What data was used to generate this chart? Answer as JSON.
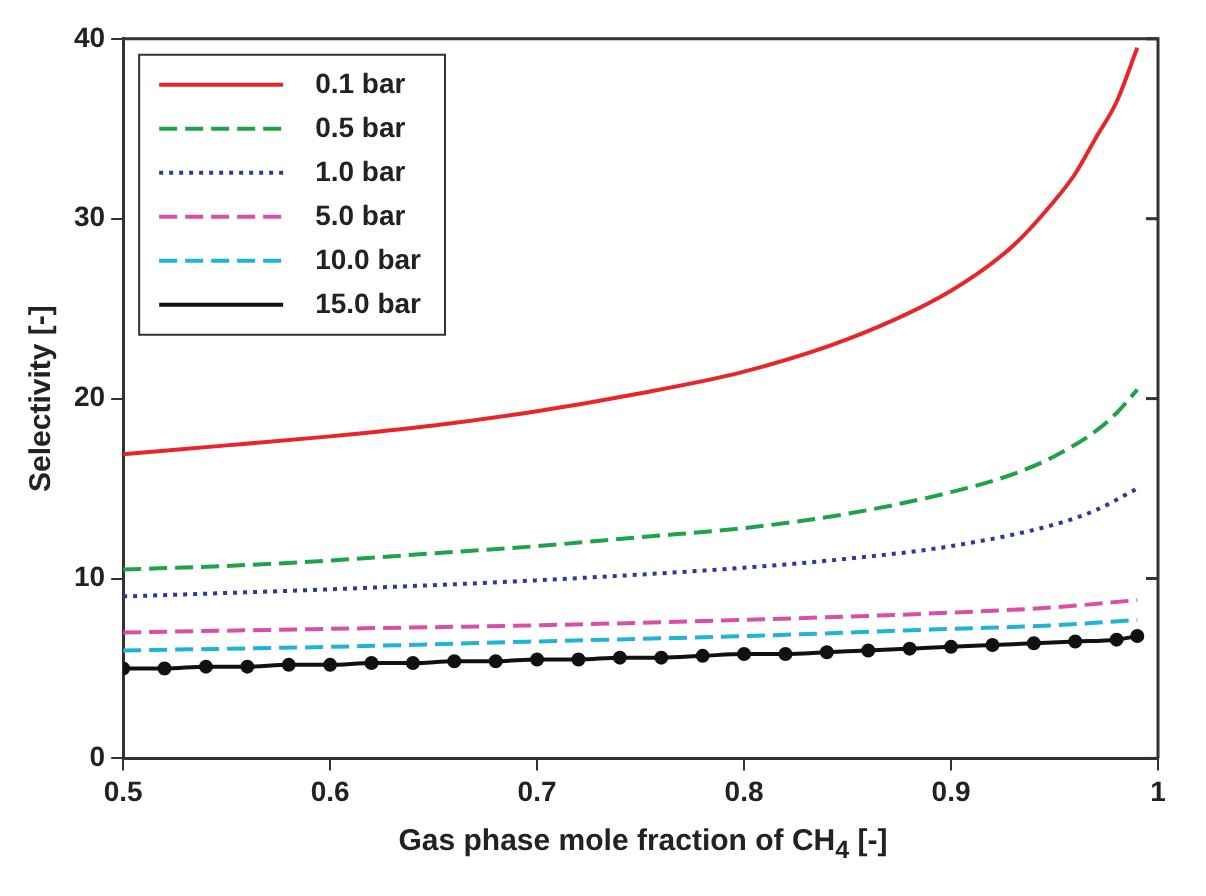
{
  "chart_data": {
    "type": "line",
    "xlabel": "Gas phase mole fraction of CH$_{4}$ [-]",
    "ylabel": "Selectivity [-]",
    "xlim": [
      0.5,
      1.0
    ],
    "xticks": [
      0.5,
      0.6,
      0.7,
      0.8,
      0.9,
      1.0
    ],
    "ylim": [
      0,
      40
    ],
    "yticks": [
      0,
      10,
      20,
      30,
      40
    ],
    "grid": false,
    "legend": "top left",
    "series": [
      {
        "name": "0.1 bar",
        "color": "#e8262a",
        "line_style": "solid",
        "marker": "none",
        "x": [
          0.5,
          0.55,
          0.6,
          0.65,
          0.7,
          0.75,
          0.8,
          0.85,
          0.9,
          0.93,
          0.95,
          0.96,
          0.97,
          0.98,
          0.99
        ],
        "values": [
          16.9,
          17.4,
          17.9,
          18.5,
          19.3,
          20.3,
          21.5,
          23.3,
          26.0,
          28.5,
          31.0,
          32.5,
          34.5,
          36.5,
          39.5
        ]
      },
      {
        "name": "0.5 bar",
        "color": "#1ea34a",
        "line_style": "dashed",
        "marker": "none",
        "x": [
          0.5,
          0.55,
          0.6,
          0.65,
          0.7,
          0.75,
          0.8,
          0.85,
          0.9,
          0.93,
          0.95,
          0.97,
          0.98,
          0.99
        ],
        "values": [
          10.5,
          10.7,
          11.0,
          11.4,
          11.8,
          12.3,
          12.8,
          13.6,
          14.8,
          15.8,
          16.8,
          18.2,
          19.2,
          20.5
        ]
      },
      {
        "name": "1.0 bar",
        "color": "#2b3a9a",
        "line_style": "dotted",
        "marker": "none",
        "x": [
          0.5,
          0.6,
          0.7,
          0.8,
          0.85,
          0.9,
          0.95,
          0.97,
          0.99
        ],
        "values": [
          9.0,
          9.4,
          9.9,
          10.6,
          11.1,
          11.8,
          13.0,
          13.8,
          15.0
        ]
      },
      {
        "name": "5.0 bar",
        "color": "#d94fa6",
        "line_style": "dashed",
        "marker": "none",
        "x": [
          0.5,
          0.6,
          0.7,
          0.8,
          0.9,
          0.95,
          0.99
        ],
        "values": [
          7.0,
          7.2,
          7.4,
          7.7,
          8.1,
          8.4,
          8.8
        ]
      },
      {
        "name": "10.0 bar",
        "color": "#1fb3d6",
        "line_style": "dashed",
        "marker": "none",
        "x": [
          0.5,
          0.6,
          0.7,
          0.8,
          0.9,
          0.95,
          0.99
        ],
        "values": [
          6.0,
          6.2,
          6.5,
          6.8,
          7.2,
          7.4,
          7.7
        ]
      },
      {
        "name": "15.0 bar",
        "color": "#111111",
        "line_style": "solid",
        "marker": "circle",
        "x": [
          0.5,
          0.52,
          0.54,
          0.56,
          0.58,
          0.6,
          0.62,
          0.64,
          0.66,
          0.68,
          0.7,
          0.72,
          0.74,
          0.76,
          0.78,
          0.8,
          0.82,
          0.84,
          0.86,
          0.88,
          0.9,
          0.92,
          0.94,
          0.96,
          0.98,
          0.99
        ],
        "values": [
          5.0,
          5.0,
          5.1,
          5.1,
          5.2,
          5.2,
          5.3,
          5.3,
          5.4,
          5.4,
          5.5,
          5.5,
          5.6,
          5.6,
          5.7,
          5.8,
          5.8,
          5.9,
          6.0,
          6.1,
          6.2,
          6.3,
          6.4,
          6.5,
          6.6,
          6.8
        ]
      }
    ]
  }
}
